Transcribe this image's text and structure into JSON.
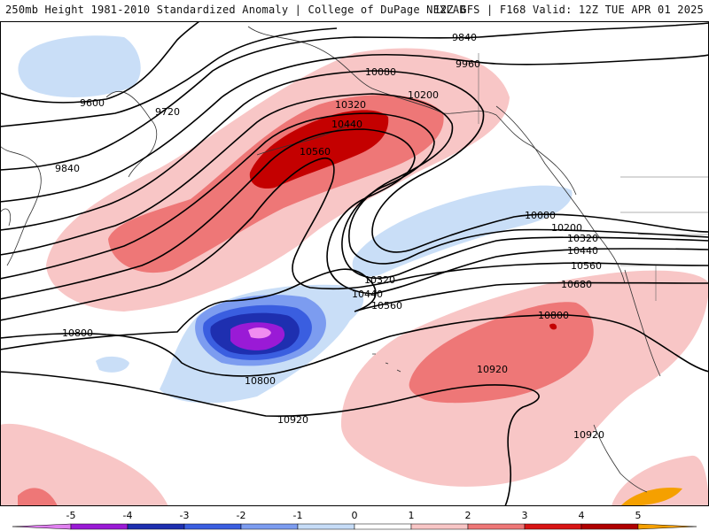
{
  "header": {
    "left": "250mb Height 1981-2010 Standardized Anomaly | College of DuPage NEXLAB",
    "right": "12Z GFS | F168 Valid: 12Z TUE APR 01 2025"
  },
  "contour_labels": [
    "9600",
    "9720",
    "9840",
    "9840",
    "9960",
    "10080",
    "10200",
    "10320",
    "10440",
    "10560",
    "10080",
    "10200",
    "10320",
    "10440",
    "10560",
    "10680",
    "10320",
    "10440",
    "10560",
    "10800",
    "10800",
    "10800",
    "10920",
    "10920",
    "10920"
  ],
  "legend": {
    "ticks": [
      "-5",
      "-4",
      "-3",
      "-2",
      "-1",
      "0",
      "1",
      "2",
      "3",
      "4",
      "5"
    ],
    "colors": [
      "#e080f0",
      "#9a1ad6",
      "#1e2fb0",
      "#3a5ee0",
      "#7c9cf0",
      "#c6dcf7",
      "#ffffff",
      "#f8c6c6",
      "#ee7777",
      "#d81414",
      "#b00000",
      "#f5a000"
    ]
  },
  "palette": {
    "neg1": "#c9def7",
    "neg2": "#7c9cf0",
    "neg3": "#3a5ee0",
    "neg4": "#1e2fb0",
    "neg5": "#9a1ad6",
    "neg6": "#f08cf0",
    "pos1": "#f8c6c6",
    "pos2": "#ee7777",
    "pos3": "#c40000"
  }
}
